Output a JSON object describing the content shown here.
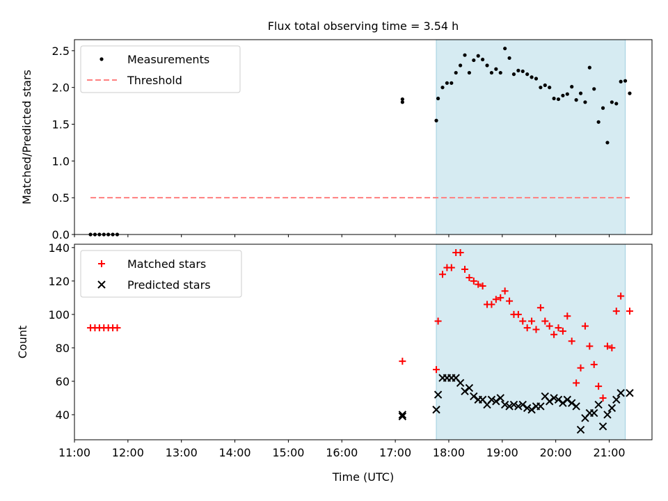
{
  "chart_data": [
    {
      "type": "scatter",
      "title": "Flux total observing time = 3.54 h",
      "ylabel": "Matched/Predicted stars",
      "xlabel": "",
      "xlim": [
        "11:00",
        "21:48"
      ],
      "ylim": [
        0,
        2.65
      ],
      "yticks": [
        "0.0",
        "0.5",
        "1.0",
        "1.5",
        "2.0",
        "2.5"
      ],
      "highlight_span": [
        "17:46",
        "21:18"
      ],
      "grid": false,
      "legend_position": "upper-left",
      "series": [
        {
          "name": "Measurements",
          "marker": "dot",
          "color": "#000000",
          "points": [
            [
              "11:18",
              0
            ],
            [
              "11:23",
              0
            ],
            [
              "11:28",
              0
            ],
            [
              "11:33",
              0
            ],
            [
              "11:38",
              0
            ],
            [
              "11:43",
              0
            ],
            [
              "11:48",
              0
            ],
            [
              "17:08",
              1.84
            ],
            [
              "17:08",
              1.8
            ],
            [
              "17:46",
              1.55
            ],
            [
              "17:48",
              1.85
            ],
            [
              "17:53",
              2.0
            ],
            [
              "17:58",
              2.06
            ],
            [
              "18:03",
              2.06
            ],
            [
              "18:08",
              2.2
            ],
            [
              "18:13",
              2.3
            ],
            [
              "18:18",
              2.44
            ],
            [
              "18:23",
              2.2
            ],
            [
              "18:28",
              2.37
            ],
            [
              "18:33",
              2.43
            ],
            [
              "18:38",
              2.38
            ],
            [
              "18:43",
              2.3
            ],
            [
              "18:48",
              2.2
            ],
            [
              "18:53",
              2.25
            ],
            [
              "18:58",
              2.2
            ],
            [
              "19:03",
              2.53
            ],
            [
              "19:08",
              2.4
            ],
            [
              "19:13",
              2.18
            ],
            [
              "19:18",
              2.23
            ],
            [
              "19:23",
              2.22
            ],
            [
              "19:28",
              2.18
            ],
            [
              "19:33",
              2.14
            ],
            [
              "19:38",
              2.12
            ],
            [
              "19:43",
              2.0
            ],
            [
              "19:48",
              2.03
            ],
            [
              "19:53",
              2.0
            ],
            [
              "19:58",
              1.85
            ],
            [
              "20:03",
              1.84
            ],
            [
              "20:08",
              1.89
            ],
            [
              "20:13",
              1.91
            ],
            [
              "20:18",
              2.01
            ],
            [
              "20:23",
              1.83
            ],
            [
              "20:28",
              1.92
            ],
            [
              "20:33",
              1.8
            ],
            [
              "20:38",
              2.27
            ],
            [
              "20:43",
              1.98
            ],
            [
              "20:48",
              1.53
            ],
            [
              "20:53",
              1.72
            ],
            [
              "20:58",
              1.25
            ],
            [
              "21:03",
              1.8
            ],
            [
              "21:08",
              1.78
            ],
            [
              "21:13",
              2.08
            ],
            [
              "21:18",
              2.09
            ],
            [
              "21:23",
              1.92
            ]
          ]
        },
        {
          "name": "Threshold",
          "marker": "dashed-line",
          "color": "#ff7f7f",
          "points": [
            [
              "11:18",
              0.5
            ],
            [
              "21:23",
              0.5
            ]
          ]
        }
      ]
    },
    {
      "type": "scatter",
      "title": "",
      "ylabel": "Count",
      "xlabel": "Time (UTC)",
      "xlim": [
        "11:00",
        "21:48"
      ],
      "ylim": [
        25,
        142
      ],
      "yticks": [
        "40",
        "60",
        "80",
        "100",
        "120",
        "140"
      ],
      "xticks": [
        "11:00",
        "12:00",
        "13:00",
        "14:00",
        "15:00",
        "16:00",
        "17:00",
        "18:00",
        "19:00",
        "20:00",
        "21:00"
      ],
      "highlight_span": [
        "17:46",
        "21:18"
      ],
      "grid": false,
      "legend_position": "upper-left",
      "series": [
        {
          "name": "Matched stars",
          "marker": "plus",
          "color": "#ff0000",
          "points": [
            [
              "11:18",
              92
            ],
            [
              "11:23",
              92
            ],
            [
              "11:28",
              92
            ],
            [
              "11:33",
              92
            ],
            [
              "11:38",
              92
            ],
            [
              "11:43",
              92
            ],
            [
              "11:48",
              92
            ],
            [
              "17:08",
              72
            ],
            [
              "17:46",
              67
            ],
            [
              "17:48",
              96
            ],
            [
              "17:53",
              124
            ],
            [
              "17:58",
              128
            ],
            [
              "18:03",
              128
            ],
            [
              "18:08",
              137
            ],
            [
              "18:13",
              137
            ],
            [
              "18:18",
              127
            ],
            [
              "18:23",
              122
            ],
            [
              "18:28",
              120
            ],
            [
              "18:33",
              118
            ],
            [
              "18:38",
              117
            ],
            [
              "18:43",
              106
            ],
            [
              "18:48",
              106
            ],
            [
              "18:53",
              109
            ],
            [
              "18:58",
              110
            ],
            [
              "19:03",
              114
            ],
            [
              "19:08",
              108
            ],
            [
              "19:13",
              100
            ],
            [
              "19:18",
              100
            ],
            [
              "19:23",
              96
            ],
            [
              "19:28",
              92
            ],
            [
              "19:33",
              96
            ],
            [
              "19:38",
              91
            ],
            [
              "19:43",
              104
            ],
            [
              "19:48",
              96
            ],
            [
              "19:53",
              93
            ],
            [
              "19:58",
              88
            ],
            [
              "20:03",
              92
            ],
            [
              "20:08",
              90
            ],
            [
              "20:13",
              99
            ],
            [
              "20:18",
              84
            ],
            [
              "20:23",
              59
            ],
            [
              "20:28",
              68
            ],
            [
              "20:33",
              93
            ],
            [
              "20:38",
              81
            ],
            [
              "20:43",
              70
            ],
            [
              "20:48",
              57
            ],
            [
              "20:53",
              50
            ],
            [
              "20:58",
              81
            ],
            [
              "21:03",
              80
            ],
            [
              "21:08",
              102
            ],
            [
              "21:13",
              111
            ],
            [
              "21:23",
              102
            ]
          ]
        },
        {
          "name": "Predicted stars",
          "marker": "x",
          "color": "#000000",
          "points": [
            [
              "17:08",
              40
            ],
            [
              "17:08",
              39
            ],
            [
              "17:46",
              43
            ],
            [
              "17:48",
              52
            ],
            [
              "17:53",
              62
            ],
            [
              "17:58",
              62
            ],
            [
              "18:03",
              62
            ],
            [
              "18:08",
              62
            ],
            [
              "18:13",
              59
            ],
            [
              "18:18",
              54
            ],
            [
              "18:23",
              56
            ],
            [
              "18:28",
              51
            ],
            [
              "18:33",
              49
            ],
            [
              "18:38",
              49
            ],
            [
              "18:43",
              46
            ],
            [
              "18:48",
              49
            ],
            [
              "18:53",
              48
            ],
            [
              "18:58",
              50
            ],
            [
              "19:03",
              46
            ],
            [
              "19:08",
              45
            ],
            [
              "19:13",
              46
            ],
            [
              "19:18",
              45
            ],
            [
              "19:23",
              46
            ],
            [
              "19:28",
              44
            ],
            [
              "19:33",
              43
            ],
            [
              "19:38",
              45
            ],
            [
              "19:43",
              45
            ],
            [
              "19:48",
              51
            ],
            [
              "19:53",
              48
            ],
            [
              "19:58",
              50
            ],
            [
              "20:03",
              49
            ],
            [
              "20:08",
              47
            ],
            [
              "20:13",
              49
            ],
            [
              "20:18",
              47
            ],
            [
              "20:23",
              45
            ],
            [
              "20:28",
              31
            ],
            [
              "20:33",
              38
            ],
            [
              "20:38",
              41
            ],
            [
              "20:43",
              41
            ],
            [
              "20:48",
              46
            ],
            [
              "20:53",
              33
            ],
            [
              "20:58",
              40
            ],
            [
              "21:03",
              44
            ],
            [
              "21:08",
              49
            ],
            [
              "21:13",
              53
            ],
            [
              "21:23",
              53
            ]
          ]
        }
      ]
    }
  ]
}
